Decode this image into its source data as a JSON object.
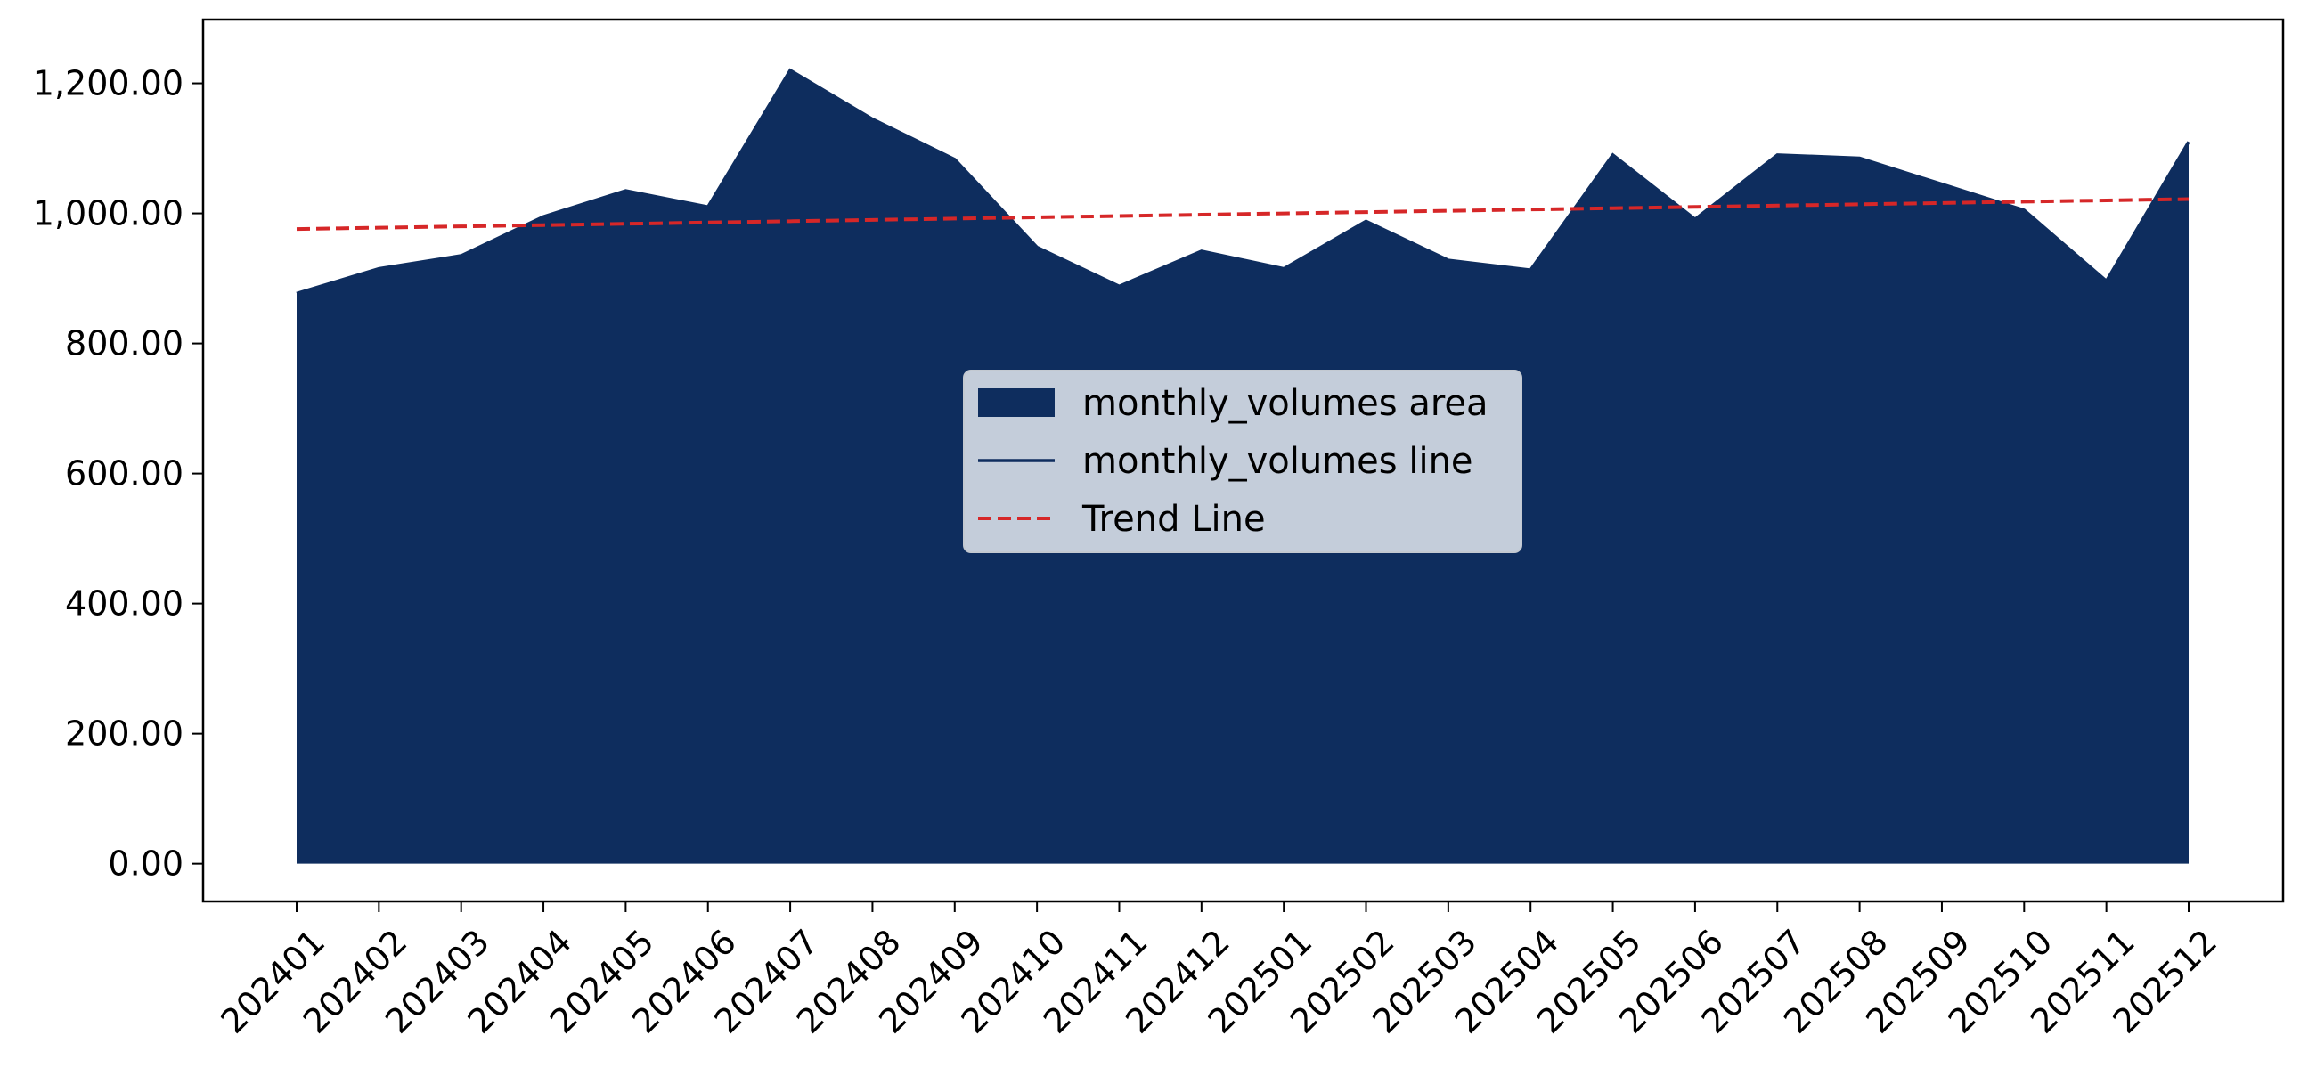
{
  "chart_data": {
    "type": "area",
    "title": "",
    "xlabel": "",
    "ylabel": "",
    "categories": [
      "202401",
      "202402",
      "202403",
      "202404",
      "202405",
      "202406",
      "202407",
      "202408",
      "202409",
      "202410",
      "202411",
      "202412",
      "202501",
      "202502",
      "202503",
      "202504",
      "202505",
      "202506",
      "202507",
      "202508",
      "202509",
      "202510",
      "202511",
      "202512"
    ],
    "series": [
      {
        "name": "monthly_volumes area",
        "style": "area",
        "color": "#0e2d5e",
        "values": [
          877,
          915,
          935,
          995,
          1035,
          1010,
          1220,
          1145,
          1083,
          948,
          888,
          942,
          915,
          988,
          928,
          913,
          1090,
          991,
          1090,
          1085,
          1045,
          1005,
          896,
          1110
        ]
      },
      {
        "name": "monthly_volumes line",
        "style": "line",
        "color": "#0e2d5e",
        "values": [
          877,
          915,
          935,
          995,
          1035,
          1010,
          1220,
          1145,
          1083,
          948,
          888,
          942,
          915,
          988,
          928,
          913,
          1090,
          991,
          1090,
          1085,
          1045,
          1005,
          896,
          1110
        ]
      },
      {
        "name": "Trend Line",
        "style": "dashed",
        "color": "#d62728",
        "values": [
          976,
          978,
          980,
          982,
          984,
          986,
          988,
          990,
          992,
          994,
          996,
          998,
          1000,
          1002,
          1004,
          1006,
          1008,
          1010,
          1012,
          1014,
          1016,
          1018,
          1020,
          1022
        ]
      }
    ],
    "ylim": [
      -58,
      1298
    ],
    "yticks": [
      0,
      200,
      400,
      600,
      800,
      1000,
      1200
    ],
    "ytick_labels": [
      "0.00",
      "200.00",
      "400.00",
      "600.00",
      "800.00",
      "1,000.00",
      "1,200.00"
    ],
    "grid": false,
    "legend_position": "center"
  }
}
